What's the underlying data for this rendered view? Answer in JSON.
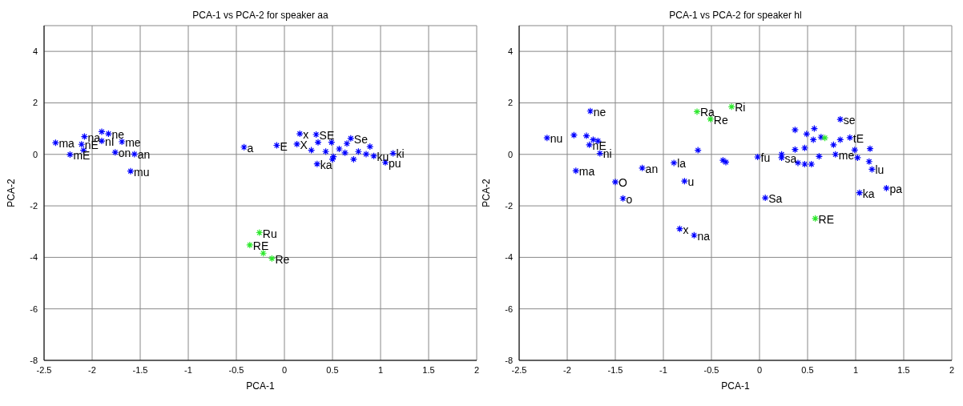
{
  "chart_data": [
    {
      "type": "scatter",
      "title": "PCA-1 vs PCA-2 for speaker aa",
      "xlabel": "PCA-1",
      "ylabel": "PCA-2",
      "xlim": [
        -2.5,
        2
      ],
      "ylim": [
        -8,
        5
      ],
      "xticks": [
        -2.5,
        -2,
        -1.5,
        -1,
        -0.5,
        0,
        0.5,
        1,
        1.5,
        2
      ],
      "yticks": [
        -8,
        -6,
        -4,
        -2,
        0,
        2,
        4
      ],
      "grid": true,
      "marker": "cross",
      "series": [
        {
          "color": "#0000ff",
          "x": [
            -2.38,
            -2.08,
            -1.9,
            -1.83,
            -1.9,
            -2.11,
            -2.09,
            -2.23,
            -1.69,
            -1.76,
            -1.56,
            -1.6,
            -0.42,
            -0.08,
            0.16,
            0.13,
            0.33,
            0.69,
            1.13,
            1.05,
            0.34,
            0.93,
            0.72,
            0.89,
            0.5,
            0.28,
            0.35,
            0.49,
            0.57,
            0.63,
            0.51,
            0.77,
            0.85,
            0.65,
            0.43
          ],
          "values": [
            0.45,
            0.69,
            0.88,
            0.8,
            0.52,
            0.39,
            0.16,
            -0.01,
            0.49,
            0.08,
            0.01,
            -0.65,
            0.28,
            0.35,
            0.8,
            0.4,
            0.77,
            0.62,
            0.04,
            -0.31,
            -0.37,
            -0.06,
            -0.19,
            0.3,
            -0.19,
            0.16,
            0.47,
            0.47,
            0.21,
            0.06,
            -0.09,
            0.11,
            0.01,
            0.42,
            0.11
          ]
        },
        {
          "color": "#2ee82e",
          "x": [
            -0.26,
            -0.36,
            -0.22,
            -0.13
          ],
          "values": [
            -3.04,
            -3.52,
            -3.84,
            -4.04
          ]
        }
      ],
      "annotations": [
        {
          "text": "ma",
          "x": -2.38,
          "y": 0.45
        },
        {
          "text": "na",
          "x": -2.08,
          "y": 0.69
        },
        {
          "text": "ne",
          "x": -1.83,
          "y": 0.8
        },
        {
          "text": "nI",
          "x": -1.9,
          "y": 0.52
        },
        {
          "text": "nE",
          "x": -2.11,
          "y": 0.39
        },
        {
          "text": "mE",
          "x": -2.23,
          "y": -0.01
        },
        {
          "text": "me",
          "x": -1.69,
          "y": 0.49
        },
        {
          "text": "on",
          "x": -1.76,
          "y": 0.08
        },
        {
          "text": "an",
          "x": -1.56,
          "y": 0.01
        },
        {
          "text": "mu",
          "x": -1.6,
          "y": -0.65
        },
        {
          "text": "a",
          "x": -0.42,
          "y": 0.28
        },
        {
          "text": "E",
          "x": -0.08,
          "y": 0.35
        },
        {
          "text": "x",
          "x": 0.16,
          "y": 0.8
        },
        {
          "text": "X",
          "x": 0.13,
          "y": 0.4
        },
        {
          "text": "SE",
          "x": 0.33,
          "y": 0.77
        },
        {
          "text": "Se",
          "x": 0.69,
          "y": 0.62
        },
        {
          "text": "ki",
          "x": 1.13,
          "y": 0.04
        },
        {
          "text": "pu",
          "x": 1.05,
          "y": -0.31
        },
        {
          "text": "ka",
          "x": 0.34,
          "y": -0.37
        },
        {
          "text": "ku",
          "x": 0.93,
          "y": -0.06
        },
        {
          "text": "Ru",
          "x": -0.26,
          "y": -3.04
        },
        {
          "text": "RE",
          "x": -0.36,
          "y": -3.52
        },
        {
          "text": "Re",
          "x": -0.13,
          "y": -4.04
        }
      ]
    },
    {
      "type": "scatter",
      "title": "PCA-1 vs PCA-2 for speaker hl",
      "xlabel": "PCA-1",
      "ylabel": "PCA-2",
      "xlim": [
        -2.5,
        2
      ],
      "ylim": [
        -8,
        5
      ],
      "xticks": [
        -2.5,
        -2,
        -1.5,
        -1,
        -0.5,
        0,
        0.5,
        1,
        1.5,
        2
      ],
      "yticks": [
        -8,
        -6,
        -4,
        -2,
        0,
        2,
        4
      ],
      "grid": true,
      "marker": "cross",
      "series": [
        {
          "color": "#0000ff",
          "x": [
            -1.76,
            -2.21,
            -1.93,
            -1.8,
            -1.73,
            -1.68,
            -1.77,
            -1.66,
            -1.91,
            -1.22,
            -1.5,
            -1.42,
            -0.89,
            -0.78,
            -0.64,
            -0.38,
            -0.35,
            -0.83,
            -0.68,
            0.84,
            -0.02,
            0.06,
            1.04,
            1.32,
            1.17,
            0.94,
            1.15,
            0.23,
            0.23,
            0.37,
            0.47,
            0.62,
            0.79,
            0.57,
            0.37,
            0.49,
            0.56,
            0.64,
            0.77,
            0.99,
            1.02,
            1.14,
            0.4,
            0.47,
            0.54,
            0.84
          ],
          "values": [
            1.68,
            0.64,
            0.75,
            0.72,
            0.57,
            0.52,
            0.37,
            0.04,
            -0.64,
            -0.53,
            -1.07,
            -1.71,
            -0.33,
            -1.04,
            0.16,
            -0.23,
            -0.3,
            -2.89,
            -3.14,
            1.36,
            -0.1,
            -1.69,
            -1.49,
            -1.31,
            -0.58,
            0.65,
            0.22,
            0.0,
            -0.13,
            0.19,
            0.25,
            -0.08,
            0.0,
            1.0,
            0.95,
            0.79,
            0.57,
            0.67,
            0.37,
            0.17,
            -0.13,
            -0.28,
            -0.33,
            -0.38,
            -0.38,
            0.57
          ]
        },
        {
          "color": "#2ee82e",
          "x": [
            -0.65,
            -0.51,
            -0.29,
            0.58,
            0.68
          ],
          "values": [
            1.66,
            1.37,
            1.85,
            -2.49,
            0.64
          ]
        }
      ],
      "annotations": [
        {
          "text": "ne",
          "x": -1.76,
          "y": 1.68
        },
        {
          "text": "nu",
          "x": -2.21,
          "y": 0.64
        },
        {
          "text": "nE",
          "x": -1.77,
          "y": 0.37
        },
        {
          "text": "ni",
          "x": -1.66,
          "y": 0.04
        },
        {
          "text": "ma",
          "x": -1.91,
          "y": -0.64
        },
        {
          "text": "an",
          "x": -1.22,
          "y": -0.53
        },
        {
          "text": "O",
          "x": -1.5,
          "y": -1.07
        },
        {
          "text": "o",
          "x": -1.42,
          "y": -1.71
        },
        {
          "text": "la",
          "x": -0.89,
          "y": -0.33
        },
        {
          "text": "u",
          "x": -0.78,
          "y": -1.04
        },
        {
          "text": "x",
          "x": -0.83,
          "y": -2.89
        },
        {
          "text": "na",
          "x": -0.68,
          "y": -3.14
        },
        {
          "text": "Ra",
          "x": -0.65,
          "y": 1.66
        },
        {
          "text": "Re",
          "x": -0.51,
          "y": 1.37
        },
        {
          "text": "Ri",
          "x": -0.29,
          "y": 1.85
        },
        {
          "text": "se",
          "x": 0.84,
          "y": 1.36
        },
        {
          "text": "fu",
          "x": -0.02,
          "y": -0.1
        },
        {
          "text": "Sa",
          "x": 0.06,
          "y": -1.69
        },
        {
          "text": "RE",
          "x": 0.58,
          "y": -2.49
        },
        {
          "text": "ka",
          "x": 1.04,
          "y": -1.49
        },
        {
          "text": "pa",
          "x": 1.32,
          "y": -1.31
        },
        {
          "text": "lu",
          "x": 1.17,
          "y": -0.58
        },
        {
          "text": "tE",
          "x": 0.94,
          "y": 0.65
        },
        {
          "text": "sa",
          "x": 0.23,
          "y": -0.13
        },
        {
          "text": "me",
          "x": 0.79,
          "y": 0.0
        }
      ]
    }
  ]
}
